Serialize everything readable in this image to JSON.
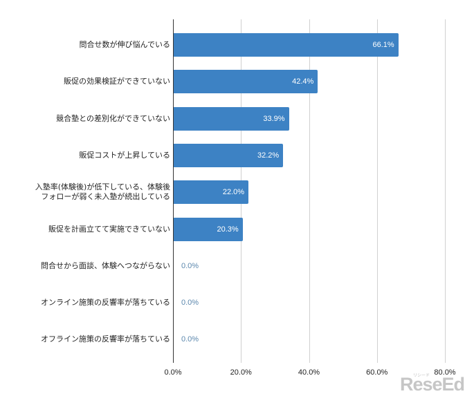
{
  "chart_data": {
    "type": "bar",
    "orientation": "horizontal",
    "title": "",
    "xlabel": "",
    "ylabel": "",
    "xlim": [
      0,
      80
    ],
    "grid": true,
    "legend": null,
    "categories": [
      "問合せ数が伸び悩んでいる",
      "販促の効果検証ができていない",
      "競合塾との差別化ができていない",
      "販促コストが上昇している",
      "入塾率(体験後)が低下している、体験後\nフォローが弱く未入塾が続出している",
      "販促を計画立てて実施できていない",
      "問合せから面談、体験へつながらない",
      "オンライン施策の反響率が落ちている",
      "オフライン施策の反響率が落ちている"
    ],
    "values": [
      66.1,
      42.4,
      33.9,
      32.2,
      22.0,
      20.3,
      0.0,
      0.0,
      0.0
    ],
    "value_labels": [
      "66.1%",
      "42.4%",
      "33.9%",
      "32.2%",
      "22.0%",
      "20.3%",
      "0.0%",
      "0.0%",
      "0.0%"
    ],
    "x_ticks": [
      "0.0%",
      "20.0%",
      "40.0%",
      "60.0%",
      "80.0%"
    ],
    "x_tick_values": [
      0,
      20,
      40,
      60,
      80
    ],
    "bar_color": "#3d82c4",
    "zero_label_color": "#5b87ad"
  },
  "watermark": {
    "text": "ReseEd",
    "sub": "リシード"
  }
}
